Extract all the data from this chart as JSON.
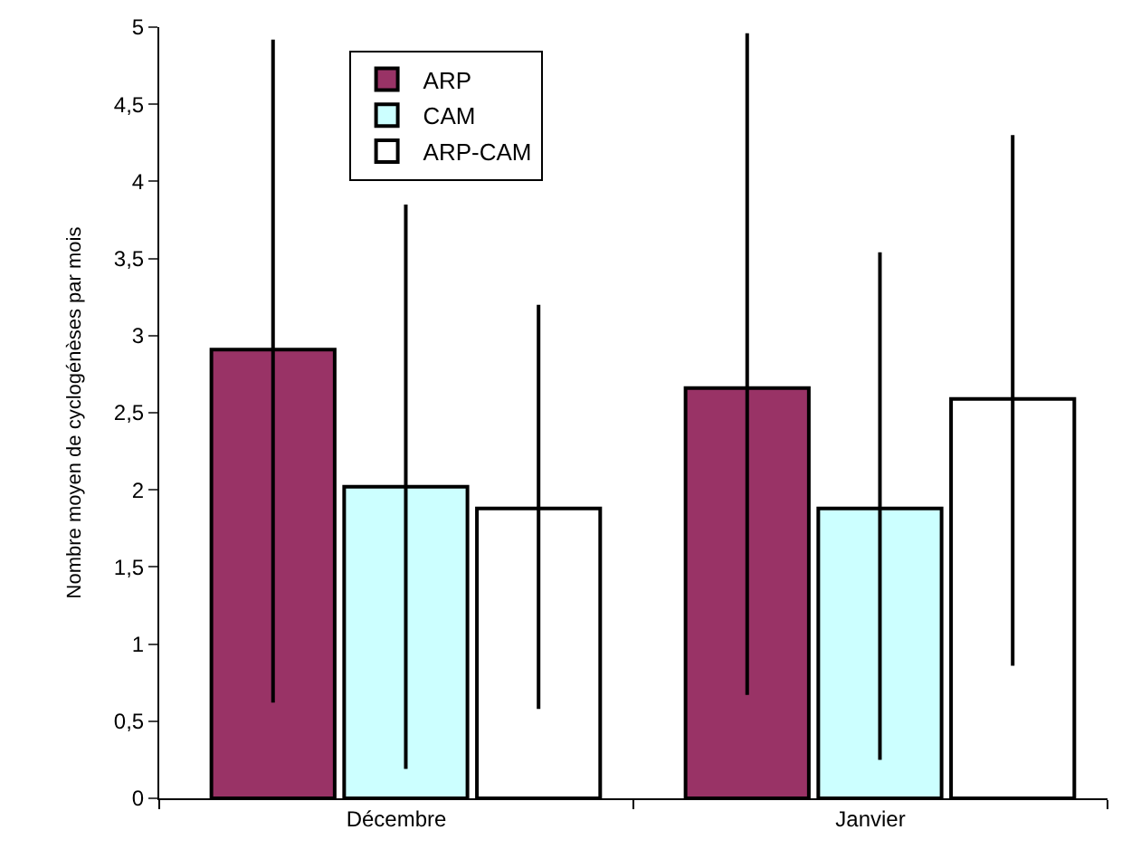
{
  "chart_data": {
    "type": "bar",
    "ylabel": "Nombre moyen de cyclogénèses par mois",
    "categories": [
      "Décembre",
      "Janvier"
    ],
    "series": [
      {
        "name": "ARP",
        "color": "#993366",
        "values": [
          2.91,
          2.66
        ],
        "errors": [
          [
            0.62,
            4.92
          ],
          [
            0.67,
            4.96
          ]
        ]
      },
      {
        "name": "CAM",
        "color": "#ccffff",
        "values": [
          2.02,
          1.88
        ],
        "errors": [
          [
            0.19,
            3.85
          ],
          [
            0.25,
            3.54
          ]
        ]
      },
      {
        "name": "ARP-CAM",
        "color": "#ffffff",
        "values": [
          1.88,
          2.59
        ],
        "errors": [
          [
            0.58,
            3.2
          ],
          [
            0.86,
            4.3
          ]
        ]
      }
    ],
    "ylim": [
      0,
      5
    ],
    "yticks": [
      0,
      {
        "value": 0.5,
        "label": "0,5"
      },
      1,
      {
        "value": 1.5,
        "label": "1,5"
      },
      2,
      {
        "value": 2.5,
        "label": "2,5"
      },
      3,
      {
        "value": 3.5,
        "label": "3,5"
      },
      4,
      {
        "value": 4.5,
        "label": "4,5"
      },
      5
    ],
    "legend": "top"
  }
}
